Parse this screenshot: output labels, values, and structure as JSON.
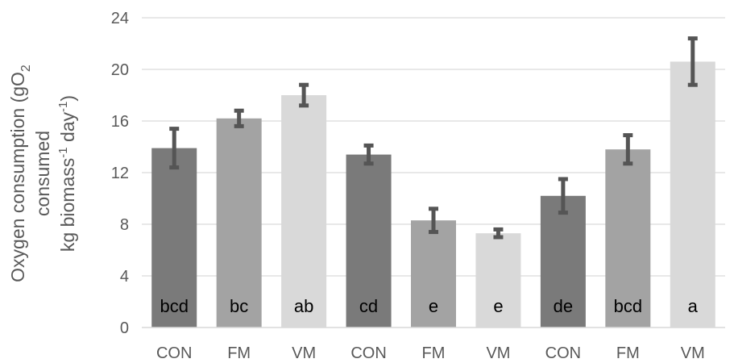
{
  "chart_data": {
    "type": "bar",
    "categories": [
      "CON",
      "FM",
      "VM",
      "CON",
      "FM",
      "VM",
      "CON",
      "FM",
      "VM"
    ],
    "values": [
      13.9,
      16.2,
      18.0,
      13.4,
      8.3,
      7.3,
      10.2,
      13.8,
      20.6
    ],
    "errors": [
      1.5,
      0.6,
      0.8,
      0.7,
      0.9,
      0.3,
      1.3,
      1.1,
      1.8
    ],
    "significance_letters": [
      "bcd",
      "bc",
      "ab",
      "cd",
      "e",
      "e",
      "de",
      "bcd",
      "a"
    ],
    "bar_colors": [
      "#7a7a7a",
      "#a3a3a3",
      "#d9d9d9",
      "#7a7a7a",
      "#a3a3a3",
      "#d9d9d9",
      "#7a7a7a",
      "#a3a3a3",
      "#d9d9d9"
    ],
    "error_bar_color": "#555555",
    "grid_color": "#d9d9d9",
    "ylabel_lines": [
      "Oxygen consumption (gO",
      "consumed",
      "kg biomass",
      " day",
      ")"
    ],
    "ylabel": "Oxygen consumption (gO2 consumed kg biomass-1 day-1)",
    "ylim": [
      0,
      24
    ],
    "yticks": [
      0,
      4,
      8,
      12,
      16,
      20,
      24
    ],
    "grid": true,
    "legend": "none"
  }
}
